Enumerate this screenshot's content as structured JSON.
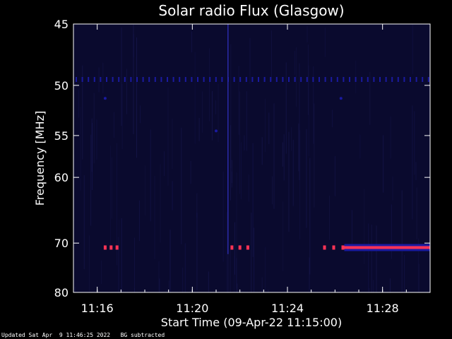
{
  "chart_data": {
    "type": "heatmap",
    "title": "Solar radio Flux (Glasgow)",
    "xlabel": "Start Time (09-Apr-22 11:15:00)",
    "ylabel": "Frequency [MHz]",
    "x_unit": "minutes",
    "xlim": [
      "11:15:00",
      "11:30:00"
    ],
    "ylim": [
      45,
      80
    ],
    "x_ticks": [
      "11:16",
      "11:20",
      "11:24",
      "11:28"
    ],
    "y_ticks": [
      45,
      50,
      55,
      60,
      70,
      80
    ],
    "y_scale": "reciprocal",
    "grid": false,
    "colors": {
      "background": "#000000",
      "plot_background": "#0a0a2e",
      "axes": "#ffffff",
      "emission_low": "#1a1aa0",
      "emission_high": "#ff3355"
    },
    "features": [
      {
        "label": "dotted-line",
        "frequency": 49.5,
        "start": "11:15:00",
        "end": "11:30:00"
      },
      {
        "label": "point",
        "frequency": 51.2,
        "time": "11:16:20"
      },
      {
        "label": "point",
        "frequency": 51.2,
        "time": "11:26:15"
      },
      {
        "label": "point",
        "frequency": 54.5,
        "time": "11:21:00"
      },
      {
        "label": "burst",
        "frequency": 70.8,
        "start": "11:16:20",
        "end": "11:16:50"
      },
      {
        "label": "burst",
        "frequency": 70.8,
        "start": "11:21:40",
        "end": "11:22:40"
      },
      {
        "label": "burst",
        "frequency": 70.8,
        "start": "11:25:30",
        "end": "11:30:00"
      },
      {
        "label": "vertical",
        "time": "11:21:30",
        "start_frequency": 45,
        "end_frequency": 72
      }
    ]
  },
  "footer": {
    "updated": "Updated Sat Apr  9 11:46:25 2022",
    "mode": "BG subtracted"
  }
}
